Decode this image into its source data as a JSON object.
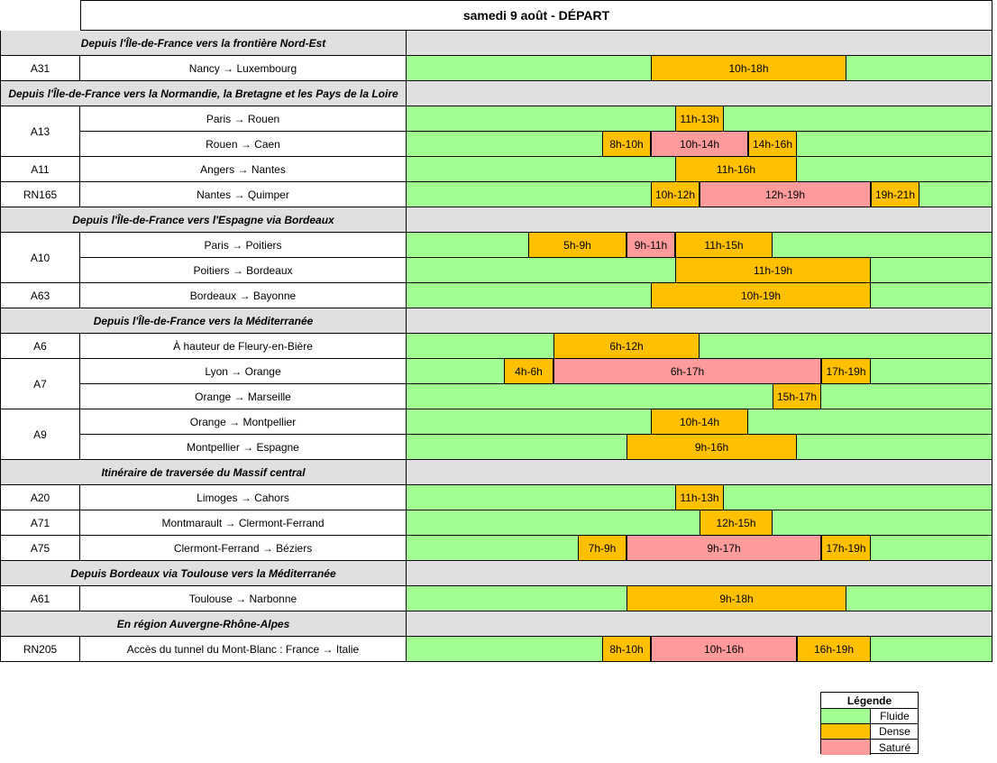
{
  "title": "samedi 9 août  - DÉPART",
  "colors": {
    "fluide": "#a0ff90",
    "dense": "#ffc000",
    "sature": "#ff9b9b",
    "section": "#e0e0e0"
  },
  "hour_axis": {
    "start": 0,
    "end": 24
  },
  "sections": [
    {
      "heading": "Depuis l'Île-de-France vers la frontière Nord-Est",
      "routes": [
        {
          "road": "A31",
          "segments": [
            {
              "name": "Nancy → Luxembourg",
              "bands": [
                {
                  "label": "10h-18h",
                  "start": 10,
                  "end": 18,
                  "level": "dense"
                }
              ]
            }
          ]
        }
      ]
    },
    {
      "heading": "Depuis l'Île-de-France vers la Normandie, la Bretagne et les Pays de la Loire",
      "routes": [
        {
          "road": "A13",
          "segments": [
            {
              "name": "Paris → Rouen",
              "bands": [
                {
                  "label": "11h-13h",
                  "start": 11,
                  "end": 13,
                  "level": "dense"
                }
              ]
            },
            {
              "name": "Rouen  →  Caen",
              "bands": [
                {
                  "label": "8h-10h",
                  "start": 8,
                  "end": 10,
                  "level": "dense"
                },
                {
                  "label": "10h-14h",
                  "start": 10,
                  "end": 14,
                  "level": "sature"
                },
                {
                  "label": "14h-16h",
                  "start": 14,
                  "end": 16,
                  "level": "dense"
                }
              ]
            }
          ]
        },
        {
          "road": "A11",
          "segments": [
            {
              "name": "Angers  →  Nantes",
              "bands": [
                {
                  "label": "11h-16h",
                  "start": 11,
                  "end": 16,
                  "level": "dense"
                }
              ]
            }
          ]
        },
        {
          "road": "RN165",
          "segments": [
            {
              "name": "Nantes  →  Quimper",
              "bands": [
                {
                  "label": "10h-12h",
                  "start": 10,
                  "end": 12,
                  "level": "dense"
                },
                {
                  "label": "12h-19h",
                  "start": 12,
                  "end": 19,
                  "level": "sature"
                },
                {
                  "label": "19h-21h",
                  "start": 19,
                  "end": 21,
                  "level": "dense"
                }
              ]
            }
          ]
        }
      ]
    },
    {
      "heading": "Depuis l'Île-de-France vers l'Espagne via Bordeaux",
      "routes": [
        {
          "road": "A10",
          "segments": [
            {
              "name": "Paris  →  Poitiers",
              "bands": [
                {
                  "label": "5h-9h",
                  "start": 5,
                  "end": 9,
                  "level": "dense"
                },
                {
                  "label": "9h-11h",
                  "start": 9,
                  "end": 11,
                  "level": "sature"
                },
                {
                  "label": "11h-15h",
                  "start": 11,
                  "end": 15,
                  "level": "dense"
                }
              ]
            },
            {
              "name": "Poitiers  →  Bordeaux",
              "bands": [
                {
                  "label": "11h-19h",
                  "start": 11,
                  "end": 19,
                  "level": "dense"
                }
              ]
            }
          ]
        },
        {
          "road": "A63",
          "segments": [
            {
              "name": "Bordeaux  →  Bayonne",
              "bands": [
                {
                  "label": "10h-19h",
                  "start": 10,
                  "end": 19,
                  "level": "dense"
                }
              ]
            }
          ]
        }
      ]
    },
    {
      "heading": "Depuis l'Île-de-France vers la Méditerranée",
      "routes": [
        {
          "road": "A6",
          "segments": [
            {
              "name": "À hauteur de Fleury-en-Bière",
              "bands": [
                {
                  "label": "6h-12h",
                  "start": 6,
                  "end": 12,
                  "level": "dense"
                }
              ]
            }
          ]
        },
        {
          "road": "A7",
          "segments": [
            {
              "name": "Lyon  →  Orange",
              "bands": [
                {
                  "label": "4h-6h",
                  "start": 4,
                  "end": 6,
                  "level": "dense"
                },
                {
                  "label": "6h-17h",
                  "start": 6,
                  "end": 17,
                  "level": "sature"
                },
                {
                  "label": "17h-19h",
                  "start": 17,
                  "end": 19,
                  "level": "dense"
                }
              ]
            },
            {
              "name": "Orange  →  Marseille",
              "bands": [
                {
                  "label": "15h-17h",
                  "start": 15,
                  "end": 17,
                  "level": "dense"
                }
              ]
            }
          ]
        },
        {
          "road": "A9",
          "segments": [
            {
              "name": "Orange  →  Montpellier",
              "bands": [
                {
                  "label": "10h-14h",
                  "start": 10,
                  "end": 14,
                  "level": "dense"
                }
              ]
            },
            {
              "name": "Montpellier  →  Espagne",
              "bands": [
                {
                  "label": "9h-16h",
                  "start": 9,
                  "end": 16,
                  "level": "dense"
                }
              ]
            }
          ]
        }
      ]
    },
    {
      "heading": "Itinéraire de traversée du Massif central",
      "routes": [
        {
          "road": "A20",
          "segments": [
            {
              "name": "Limoges  →  Cahors",
              "bands": [
                {
                  "label": "11h-13h",
                  "start": 11,
                  "end": 13,
                  "level": "dense"
                }
              ]
            }
          ]
        },
        {
          "road": "A71",
          "segments": [
            {
              "name": "Montmarault  →  Clermont-Ferrand",
              "bands": [
                {
                  "label": "12h-15h",
                  "start": 12,
                  "end": 15,
                  "level": "dense"
                }
              ]
            }
          ]
        },
        {
          "road": "A75",
          "segments": [
            {
              "name": "Clermont-Ferrand  →  Béziers",
              "bands": [
                {
                  "label": "7h-9h",
                  "start": 7,
                  "end": 9,
                  "level": "dense"
                },
                {
                  "label": "9h-17h",
                  "start": 9,
                  "end": 17,
                  "level": "sature"
                },
                {
                  "label": "17h-19h",
                  "start": 17,
                  "end": 19,
                  "level": "dense"
                }
              ]
            }
          ]
        }
      ]
    },
    {
      "heading": "Depuis Bordeaux via Toulouse vers la Méditerranée",
      "routes": [
        {
          "road": "A61",
          "segments": [
            {
              "name": "Toulouse  →  Narbonne",
              "bands": [
                {
                  "label": "9h-18h",
                  "start": 9,
                  "end": 18,
                  "level": "dense"
                }
              ]
            }
          ]
        }
      ]
    },
    {
      "heading": "En région Auvergne-Rhône-Alpes",
      "routes": [
        {
          "road": "RN205",
          "segments": [
            {
              "name": "Accès du tunnel du Mont-Blanc : France  →  Italie",
              "bands": [
                {
                  "label": "8h-10h",
                  "start": 8,
                  "end": 10,
                  "level": "dense"
                },
                {
                  "label": "10h-16h",
                  "start": 10,
                  "end": 16,
                  "level": "sature"
                },
                {
                  "label": "16h-19h",
                  "start": 16,
                  "end": 19,
                  "level": "dense"
                }
              ]
            }
          ]
        }
      ]
    }
  ],
  "legend": {
    "title": "Légende",
    "items": [
      {
        "label": "Fluide",
        "level": "fluide"
      },
      {
        "label": "Dense",
        "level": "dense"
      },
      {
        "label": "Saturé",
        "level": "sature"
      }
    ]
  }
}
